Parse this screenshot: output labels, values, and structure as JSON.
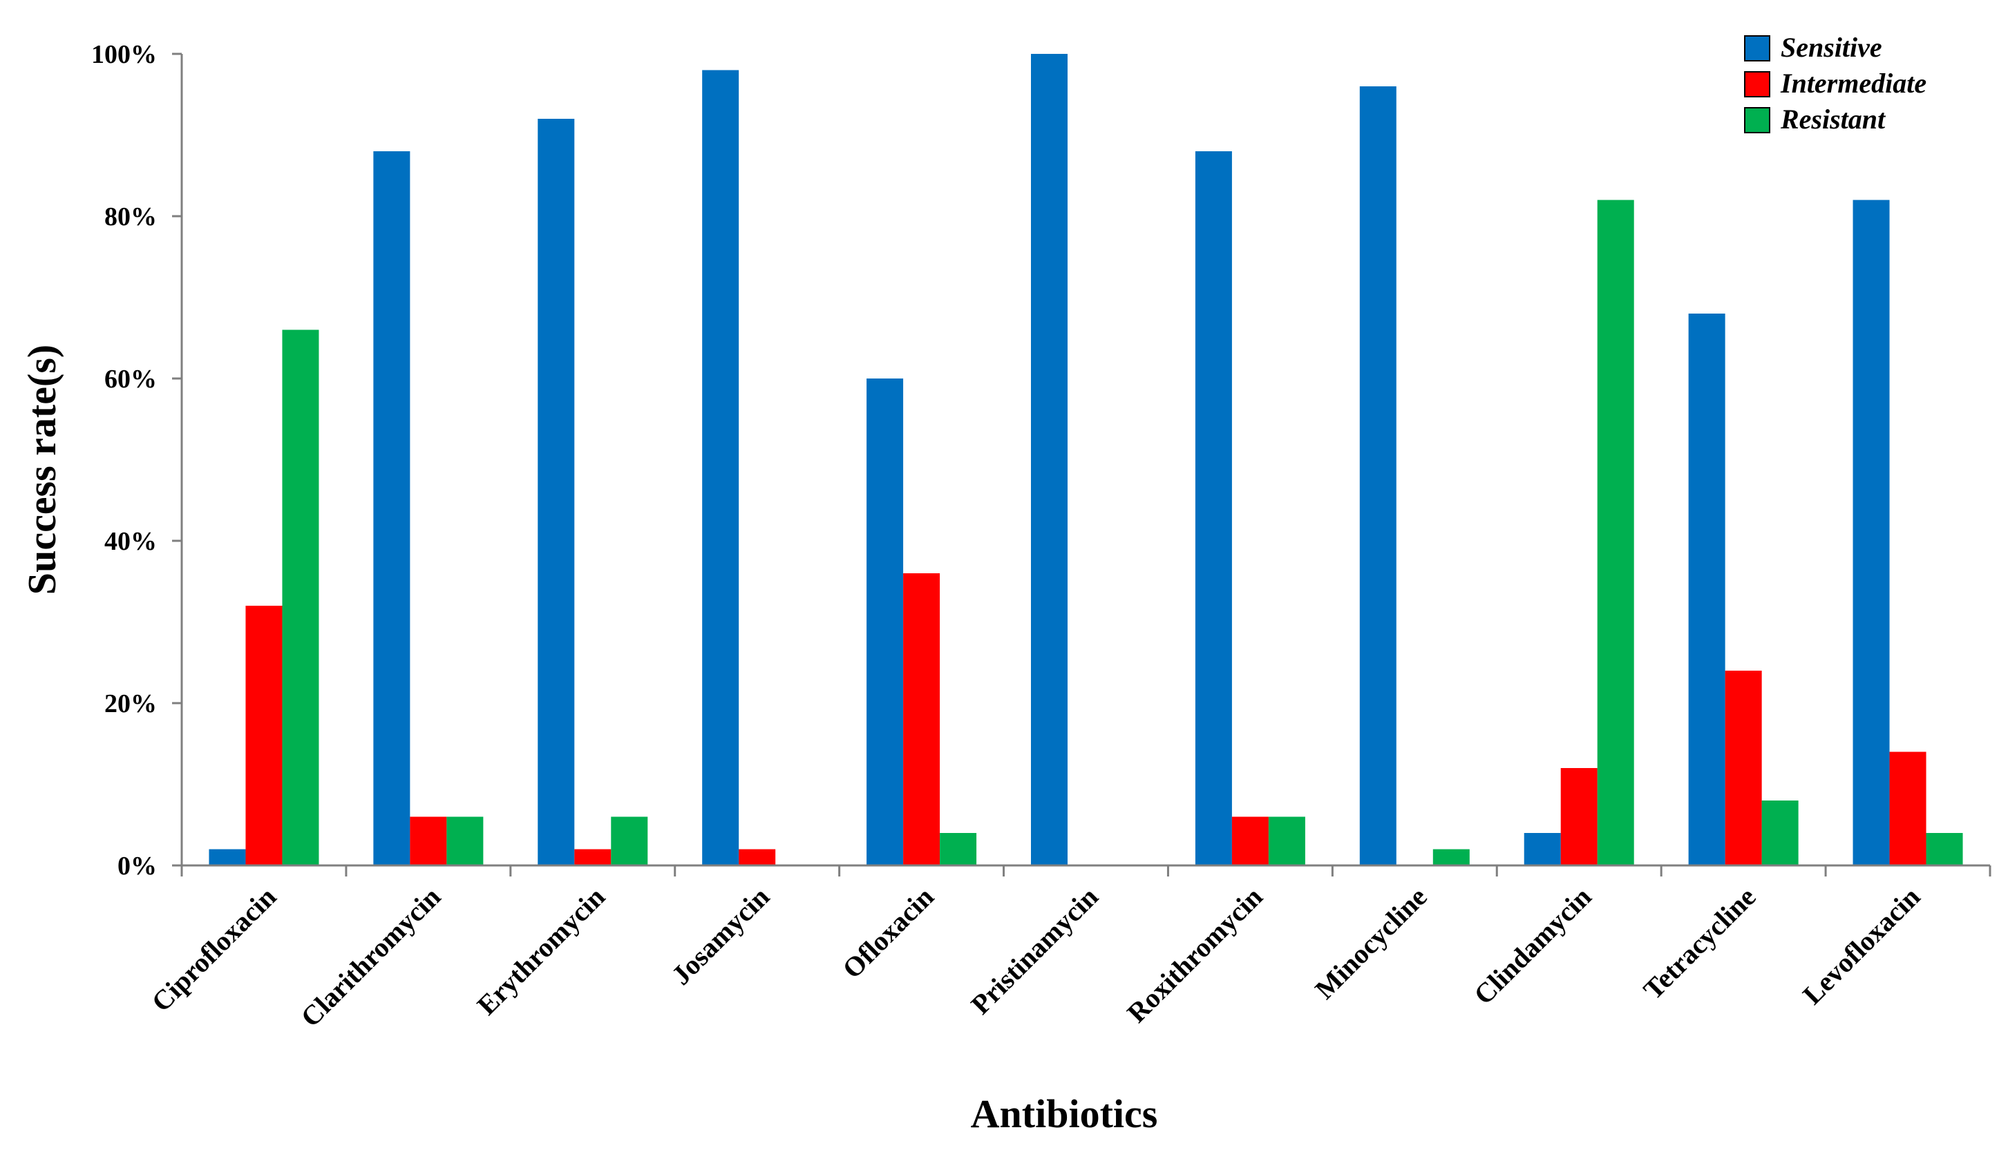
{
  "chart_data": {
    "type": "bar",
    "title": "",
    "xlabel": "Antibiotics",
    "ylabel": "Success rate(s)",
    "ylim": [
      0,
      100
    ],
    "yticks": [
      "0%",
      "20%",
      "40%",
      "60%",
      "80%",
      "100%"
    ],
    "ytick_values": [
      0,
      20,
      40,
      60,
      80,
      100
    ],
    "grid": false,
    "legend_position": "top-right",
    "categories": [
      "Ciprofloxacin",
      "Clarithromycin",
      "Erythromycin",
      "Josamycin",
      "Ofloxacin",
      "Pristinamycin",
      "Roxithromycin",
      "Minocycline",
      "Clindamycin",
      "Tetracycline",
      "Levofloxacin"
    ],
    "series": [
      {
        "name": "Sensitive",
        "color": "#0070C0",
        "values": [
          2,
          88,
          92,
          98,
          60,
          100,
          88,
          96,
          4,
          68,
          82
        ]
      },
      {
        "name": "Intermediate",
        "color": "#FF0000",
        "values": [
          32,
          6,
          2,
          2,
          36,
          0,
          6,
          0,
          12,
          24,
          14
        ]
      },
      {
        "name": "Resistant",
        "color": "#00B050",
        "values": [
          66,
          6,
          6,
          0,
          4,
          0,
          6,
          2,
          82,
          8,
          4
        ]
      }
    ]
  }
}
